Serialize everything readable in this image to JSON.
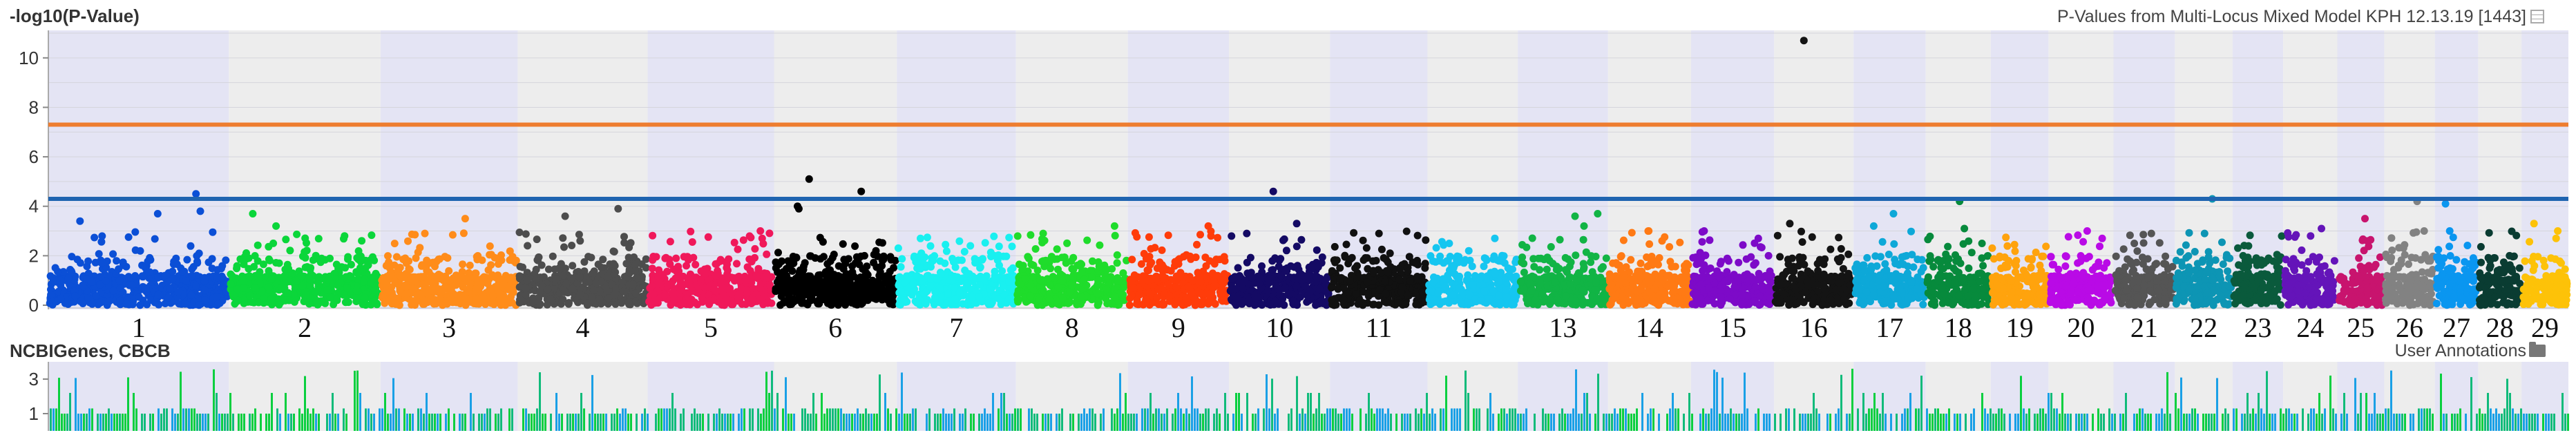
{
  "header": {
    "title": "-log10(P-Value)",
    "subtitle": "P-Values from Multi-Locus Mixed Model KPH 12.13.19 [1443]",
    "table_icon": "table-icon"
  },
  "genes_panel": {
    "title": "NCBIGenes, CBCB",
    "user_annotations": "User Annotations",
    "folder_icon": "folder-icon",
    "y_ticks": [
      "3",
      "1"
    ]
  },
  "chart_data": [
    {
      "type": "scatter",
      "title": "-log10(P-Value)",
      "ylabel": "-log10(P-Value)",
      "ylim": [
        0,
        11
      ],
      "y_ticks": [
        "0",
        "2",
        "4",
        "6",
        "8",
        "10"
      ],
      "grid": true,
      "thresholds": [
        {
          "value": 7.3,
          "color": "#ee7d2f"
        },
        {
          "value": 4.3,
          "color": "#1f64b0"
        }
      ],
      "chromosomes": [
        "1",
        "2",
        "3",
        "4",
        "5",
        "6",
        "7",
        "8",
        "9",
        "10",
        "11",
        "12",
        "13",
        "14",
        "15",
        "16",
        "17",
        "18",
        "19",
        "20",
        "21",
        "22",
        "23",
        "24",
        "25",
        "26",
        "27",
        "28",
        "29"
      ],
      "chromosome_colors": [
        "#0b4fd6",
        "#0bd63a",
        "#ff8c1a",
        "#4d4d4d",
        "#f0185a",
        "#000000",
        "#19f0f0",
        "#1fdc2b",
        "#ff3c0a",
        "#140a64",
        "#111111",
        "#15c6f0",
        "#11b445",
        "#ff7a14",
        "#7d0ac8",
        "#141414",
        "#0da8d8",
        "#078a3c",
        "#ffa30d",
        "#b90ae6",
        "#555555",
        "#0d95b4",
        "#0a5a3c",
        "#6414b9",
        "#c8146e",
        "#828282",
        "#0a96f0",
        "#0a3c32",
        "#fdc208"
      ],
      "series": [
        {
          "name": "1",
          "count": 500,
          "peak_points": [
            3.8,
            3.4,
            4.5,
            3.7
          ]
        },
        {
          "name": "2",
          "count": 420,
          "peak_points": [
            3.7,
            3.2
          ]
        },
        {
          "name": "3",
          "count": 380,
          "peak_points": [
            3.5,
            2.9
          ]
        },
        {
          "name": "4",
          "count": 360,
          "peak_points": [
            3.9,
            3.6
          ]
        },
        {
          "name": "5",
          "count": 350,
          "peak_points": [
            3.0,
            2.7
          ]
        },
        {
          "name": "6",
          "count": 340,
          "peak_points": [
            5.1,
            4.6,
            4.0,
            3.9
          ]
        },
        {
          "name": "7",
          "count": 330,
          "peak_points": [
            2.7,
            2.4
          ]
        },
        {
          "name": "8",
          "count": 310,
          "peak_points": [
            3.2,
            2.9
          ]
        },
        {
          "name": "9",
          "count": 280,
          "peak_points": [
            3.2,
            2.8
          ]
        },
        {
          "name": "10",
          "count": 280,
          "peak_points": [
            4.6,
            3.3,
            2.9
          ]
        },
        {
          "name": "11",
          "count": 270,
          "peak_points": [
            2.1,
            1.8
          ]
        },
        {
          "name": "12",
          "count": 250,
          "peak_points": [
            2.5,
            2.2
          ]
        },
        {
          "name": "13",
          "count": 250,
          "peak_points": [
            3.7,
            3.2,
            3.6
          ]
        },
        {
          "name": "14",
          "count": 230,
          "peak_points": [
            3.0,
            2.6
          ]
        },
        {
          "name": "15",
          "count": 230,
          "peak_points": [
            3.0,
            2.7
          ]
        },
        {
          "name": "16",
          "count": 220,
          "peak_points": [
            10.7,
            3.3
          ]
        },
        {
          "name": "17",
          "count": 200,
          "peak_points": [
            3.7,
            3.2
          ]
        },
        {
          "name": "18",
          "count": 180,
          "peak_points": [
            4.2,
            3.1
          ]
        },
        {
          "name": "19",
          "count": 160,
          "peak_points": [
            1.8,
            1.6
          ]
        },
        {
          "name": "20",
          "count": 180,
          "peak_points": [
            3.0,
            2.7
          ]
        },
        {
          "name": "21",
          "count": 170,
          "peak_points": [
            2.9,
            2.5
          ]
        },
        {
          "name": "22",
          "count": 160,
          "peak_points": [
            4.3,
            2.9
          ]
        },
        {
          "name": "23",
          "count": 140,
          "peak_points": [
            2.0,
            1.8
          ]
        },
        {
          "name": "24",
          "count": 150,
          "peak_points": [
            3.1,
            2.8
          ]
        },
        {
          "name": "25",
          "count": 130,
          "peak_points": [
            3.5,
            2.6
          ]
        },
        {
          "name": "26",
          "count": 140,
          "peak_points": [
            4.2,
            3.0
          ]
        },
        {
          "name": "27",
          "count": 120,
          "peak_points": [
            4.1,
            3.0
          ]
        },
        {
          "name": "28",
          "count": 120,
          "peak_points": [
            2.0,
            1.8
          ]
        },
        {
          "name": "29",
          "count": 130,
          "peak_points": [
            3.3,
            3.0
          ]
        }
      ],
      "max_point": {
        "chromosome": "16",
        "value": 10.7
      }
    },
    {
      "type": "bar",
      "title": "NCBIGenes, CBCB",
      "ylim": [
        0,
        4
      ],
      "y_ticks": [
        "3",
        "1"
      ],
      "colors": [
        "#10bb7a",
        "#1aa0e6",
        "#09cf3f"
      ]
    }
  ]
}
